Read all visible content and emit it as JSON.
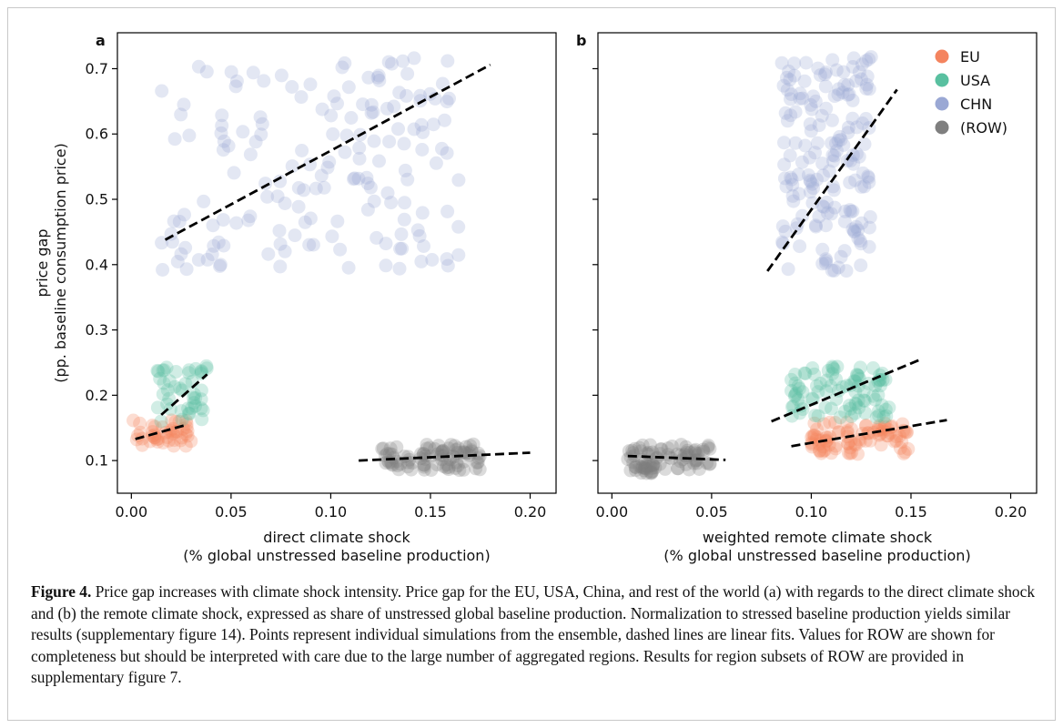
{
  "chart_data": [
    {
      "panel": "a",
      "type": "scatter",
      "xlabel_line1": "direct climate shock",
      "xlabel_line2": "(% global unstressed baseline production)",
      "ylabel_line1": "price gap",
      "ylabel_line2": "(pp. baseline consumption price)",
      "xlim": [
        -0.007,
        0.213
      ],
      "ylim": [
        0.05,
        0.755
      ],
      "xticks": [
        0.0,
        0.05,
        0.1,
        0.15,
        0.2
      ],
      "xtick_labels": [
        "0.00",
        "0.05",
        "0.10",
        "0.15",
        "0.20"
      ],
      "yticks": [
        0.1,
        0.2,
        0.3,
        0.4,
        0.5,
        0.6,
        0.7
      ],
      "ytick_labels": [
        "0.1",
        "0.2",
        "0.3",
        "0.4",
        "0.5",
        "0.6",
        "0.7"
      ],
      "series": [
        {
          "name": "EU",
          "color": "#f4845f",
          "cluster": {
            "x": [
              0.001,
              0.03
            ],
            "y": [
              0.12,
              0.165
            ],
            "n": 45
          },
          "fit": [
            [
              0.002,
              0.133
            ],
            [
              0.028,
              0.155
            ]
          ]
        },
        {
          "name": "USA",
          "color": "#59c0a0",
          "cluster": {
            "x": [
              0.013,
              0.038
            ],
            "y": [
              0.16,
              0.245
            ],
            "n": 45
          },
          "fit": [
            [
              0.015,
              0.17
            ],
            [
              0.038,
              0.232
            ]
          ]
        },
        {
          "name": "CHN",
          "color": "#9aa8d4",
          "cluster": {
            "x": [
              0.015,
              0.165
            ],
            "y": [
              0.39,
              0.72
            ],
            "n": 170
          },
          "fit": [
            [
              0.017,
              0.438
            ],
            [
              0.18,
              0.706
            ]
          ]
        },
        {
          "name": "(ROW)",
          "color": "#7f7f7f",
          "cluster": {
            "x": [
              0.125,
              0.175
            ],
            "y": [
              0.085,
              0.125
            ],
            "n": 90
          },
          "fit": [
            [
              0.114,
              0.1
            ],
            [
              0.2,
              0.112
            ]
          ]
        }
      ]
    },
    {
      "panel": "b",
      "type": "scatter",
      "xlabel_line1": "weighted remote climate shock",
      "xlabel_line2": "(% global unstressed baseline production)",
      "xlim": [
        -0.007,
        0.213
      ],
      "ylim": [
        0.05,
        0.755
      ],
      "xticks": [
        0.0,
        0.05,
        0.1,
        0.15,
        0.2
      ],
      "xtick_labels": [
        "0.00",
        "0.05",
        "0.10",
        "0.15",
        "0.20"
      ],
      "yticks": [
        0.1,
        0.2,
        0.3,
        0.4,
        0.5,
        0.6,
        0.7
      ],
      "legend_position": "top-right",
      "series": [
        {
          "name": "EU",
          "color": "#f4845f",
          "cluster": {
            "x": [
              0.1,
              0.15
            ],
            "y": [
              0.11,
              0.16
            ],
            "n": 90
          },
          "fit": [
            [
              0.09,
              0.122
            ],
            [
              0.168,
              0.162
            ]
          ]
        },
        {
          "name": "USA",
          "color": "#59c0a0",
          "cluster": {
            "x": [
              0.09,
              0.14
            ],
            "y": [
              0.165,
              0.245
            ],
            "n": 90
          },
          "fit": [
            [
              0.08,
              0.16
            ],
            [
              0.155,
              0.255
            ]
          ]
        },
        {
          "name": "CHN",
          "color": "#9aa8d4",
          "cluster": {
            "x": [
              0.085,
              0.13
            ],
            "y": [
              0.39,
              0.72
            ],
            "n": 170
          },
          "fit": [
            [
              0.078,
              0.39
            ],
            [
              0.143,
              0.668
            ]
          ]
        },
        {
          "name": "(ROW)",
          "color": "#7f7f7f",
          "cluster": {
            "x": [
              0.008,
              0.05
            ],
            "y": [
              0.08,
              0.125
            ],
            "n": 90
          },
          "fit": [
            [
              0.008,
              0.107
            ],
            [
              0.057,
              0.101
            ]
          ]
        }
      ]
    }
  ],
  "caption": {
    "label": "Figure 4.",
    "text": " Price gap increases with climate shock intensity. Price gap for the EU, USA, China, and rest of the world (a) with regards to the direct climate shock and (b) the remote climate shock, expressed as share of unstressed global baseline production. Normalization to stressed baseline production yields similar results (supplementary figure 14). Points represent individual simulations from the ensemble, dashed lines are linear fits. Values for ROW are shown for completeness but should be interpreted with care due to the large number of aggregated regions. Results for region subsets of ROW are provided in supplementary figure 7."
  }
}
